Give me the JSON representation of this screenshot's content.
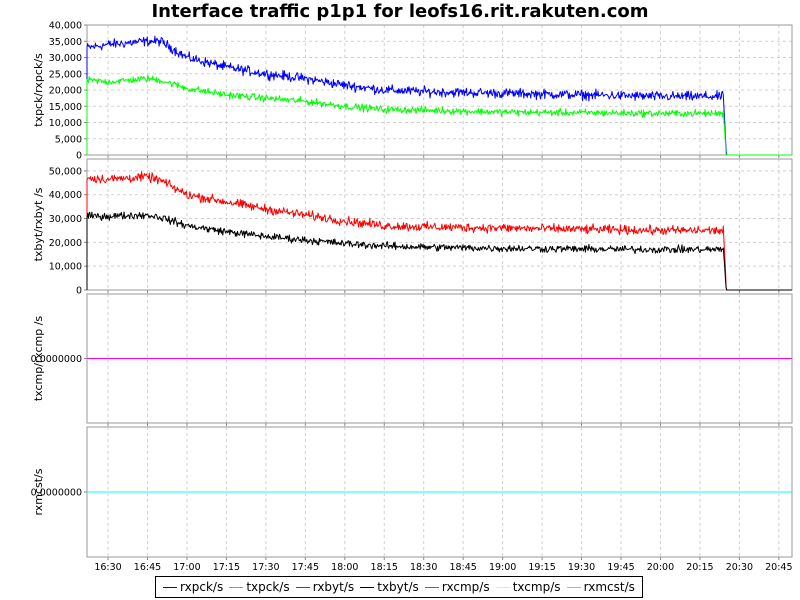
{
  "title": "Interface traffic p1p1 for leofs16.rit.rakuten.com",
  "chart_data": {
    "type": "line",
    "x_ticks": [
      "16:30",
      "16:45",
      "17:00",
      "17:15",
      "17:30",
      "17:45",
      "18:00",
      "18:15",
      "18:30",
      "18:45",
      "19:00",
      "19:15",
      "19:30",
      "19:45",
      "20:00",
      "20:15",
      "20:30",
      "20:45"
    ],
    "legend": [
      {
        "name": "rxpck/s",
        "color": "#0000ff"
      },
      {
        "name": "txpck/s",
        "color": "#00ff00"
      },
      {
        "name": "rxbyt/s",
        "color": "#ff0000"
      },
      {
        "name": "txbyt/s",
        "color": "#000000"
      },
      {
        "name": "rxcmp/s",
        "color": "#ff00ff"
      },
      {
        "name": "txcmp/s",
        "color": "#ffff00"
      },
      {
        "name": "rxmcst/s",
        "color": "#00ffff"
      }
    ],
    "panels": [
      {
        "ylabel": "txpck/rxpck/s",
        "ylim": [
          0,
          40000
        ],
        "y_ticks": [
          "0",
          "5,000",
          "10,000",
          "15,000",
          "20,000",
          "25,000",
          "30,000",
          "35,000",
          "40,000"
        ],
        "series": [
          {
            "name": "rxpck/s",
            "color": "#0000ff",
            "noise": 2200,
            "x": [
              "16:22",
              "16:30",
              "16:45",
              "16:50",
              "17:00",
              "17:15",
              "17:30",
              "17:45",
              "18:00",
              "18:15",
              "18:30",
              "19:00",
              "19:30",
              "20:00",
              "20:15",
              "20:24",
              "20:25",
              "20:50"
            ],
            "values": [
              33000,
              34000,
              35000,
              35000,
              30000,
              27000,
              25000,
              23500,
              21500,
              20000,
              19500,
              19000,
              18500,
              18000,
              18000,
              18000,
              0,
              0
            ]
          },
          {
            "name": "txpck/s",
            "color": "#00ff00",
            "noise": 1600,
            "x": [
              "16:22",
              "16:30",
              "16:45",
              "16:50",
              "17:00",
              "17:15",
              "17:30",
              "17:45",
              "18:00",
              "18:15",
              "18:30",
              "19:00",
              "19:30",
              "20:00",
              "20:15",
              "20:24",
              "20:25",
              "20:50"
            ],
            "values": [
              23000,
              22500,
              23500,
              23000,
              20500,
              18500,
              17500,
              16500,
              15000,
              14000,
              13800,
              13200,
              13000,
              12800,
              12800,
              12800,
              0,
              0
            ]
          }
        ]
      },
      {
        "ylabel": "txbyt/rxbyt /s",
        "ylim": [
          0,
          55000
        ],
        "y_ticks": [
          "0",
          "10,000",
          "20,000",
          "30,000",
          "40,000",
          "50,000"
        ],
        "series": [
          {
            "name": "rxbyt/s",
            "color": "#ff0000",
            "noise": 2800,
            "x": [
              "16:22",
              "16:30",
              "16:45",
              "16:50",
              "17:00",
              "17:15",
              "17:30",
              "17:45",
              "18:00",
              "18:15",
              "18:30",
              "19:00",
              "19:30",
              "20:00",
              "20:15",
              "20:24",
              "20:25",
              "20:50"
            ],
            "values": [
              47000,
              46500,
              47500,
              46000,
              40000,
              37000,
              34000,
              31500,
              29000,
              27000,
              26500,
              26000,
              25500,
              25000,
              25000,
              25000,
              0,
              0
            ]
          },
          {
            "name": "txbyt/s",
            "color": "#000000",
            "noise": 2300,
            "x": [
              "16:22",
              "16:30",
              "16:45",
              "16:50",
              "17:00",
              "17:15",
              "17:30",
              "17:45",
              "18:00",
              "18:15",
              "18:30",
              "19:00",
              "19:30",
              "20:00",
              "20:15",
              "20:24",
              "20:25",
              "20:50"
            ],
            "values": [
              31000,
              31000,
              31500,
              30500,
              27000,
              24500,
              22500,
              21000,
              19500,
              18500,
              18000,
              17500,
              17200,
              17000,
              17000,
              17000,
              0,
              0
            ]
          }
        ]
      },
      {
        "ylabel": "txcmp/rxcmp /s",
        "ylim": [
          -1,
          1
        ],
        "y_ticks": [
          "0.0000000"
        ],
        "series": [
          {
            "name": "rxcmp/s",
            "color": "#ff00ff",
            "noise": 0,
            "x": [
              "16:22",
              "20:50"
            ],
            "values": [
              0,
              0
            ]
          }
        ]
      },
      {
        "ylabel": "rxmcst/s",
        "ylim": [
          -1,
          1
        ],
        "y_ticks": [
          "0.0000000"
        ],
        "series": [
          {
            "name": "rxmcst/s",
            "color": "#00ffff",
            "noise": 0,
            "x": [
              "16:22",
              "20:50"
            ],
            "values": [
              0,
              0
            ]
          }
        ]
      }
    ]
  }
}
